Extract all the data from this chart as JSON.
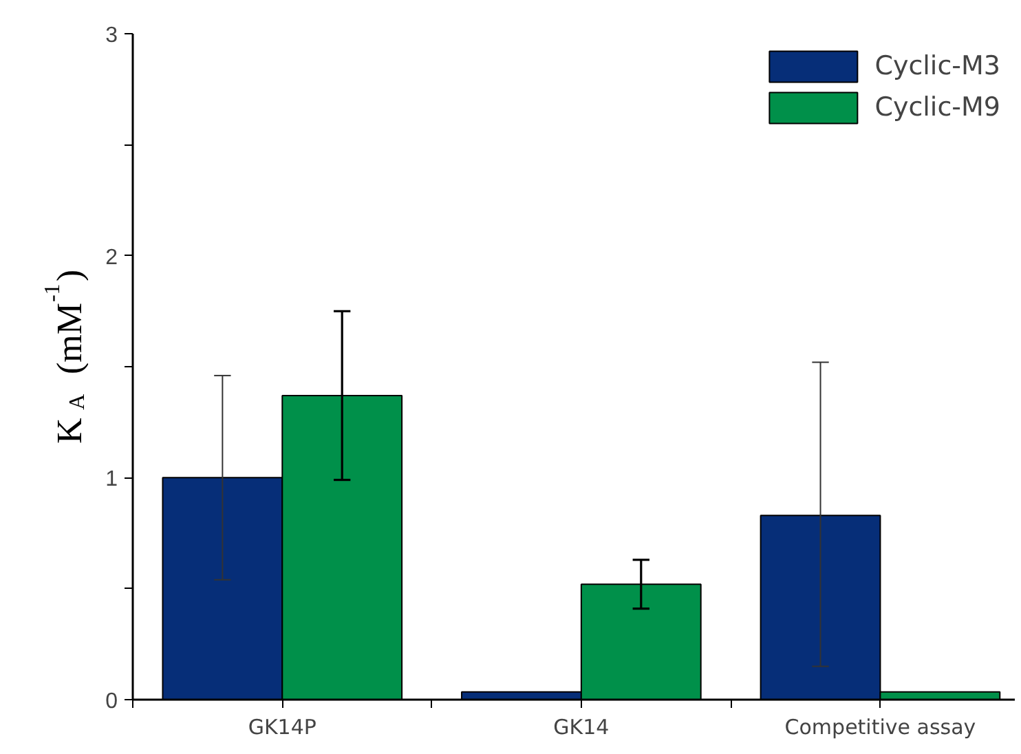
{
  "chart_data": {
    "type": "bar",
    "ylabel": "K$_{A}$ (mM$^{-1}$)",
    "categories": [
      "GK14P",
      "GK14",
      "Competitive assay"
    ],
    "series": [
      {
        "name": "Cyclic-M3",
        "color": "#062e78",
        "values": [
          1.0,
          0.035,
          0.83
        ],
        "errors": [
          0.46,
          null,
          [
            0.15,
            1.52
          ]
        ]
      },
      {
        "name": "Cyclic-M9",
        "color": "#00904a",
        "values": [
          1.37,
          0.52,
          0.035
        ],
        "errors": [
          0.38,
          0.11,
          null
        ]
      }
    ],
    "ylim": [
      0,
      3
    ],
    "yticks": [
      0,
      {
        "value": 0.5,
        "label": null
      },
      1,
      {
        "value": 1.5,
        "label": null
      },
      2,
      {
        "value": 2.5,
        "label": null
      },
      3
    ],
    "grid": false,
    "legend": "top right"
  }
}
